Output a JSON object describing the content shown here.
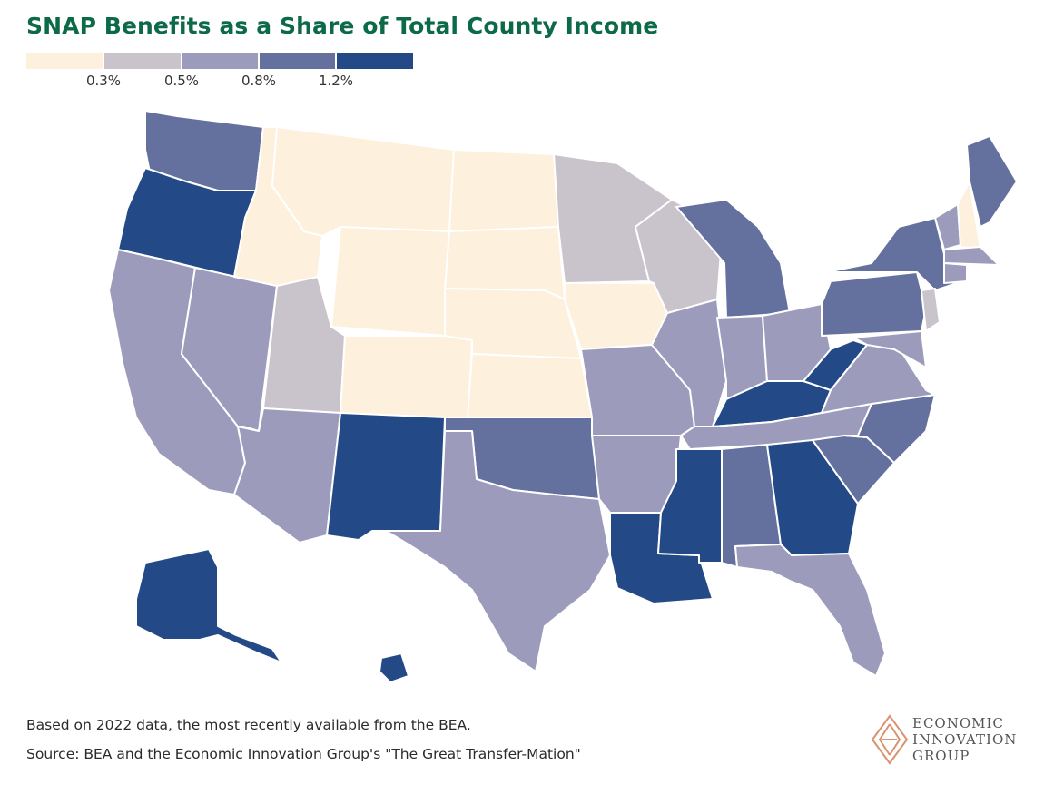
{
  "title": "SNAP Benefits as a Share of Total County Income",
  "legend": {
    "colors": [
      "#fdf0dc",
      "#c9c3cc",
      "#9c9bbb",
      "#64709e",
      "#234a86"
    ],
    "thresholds": [
      "0.3%",
      "0.5%",
      "0.8%",
      "1.2%"
    ]
  },
  "notes": {
    "line1": "Based on 2022 data, the most recently available from the BEA.",
    "line2": "Source: BEA and the Economic Innovation Group's \"The Great Transfer-Mation\""
  },
  "logo": {
    "line1": "ECONOMIC",
    "line2": "INNOVATION",
    "line3": "GROUP",
    "color": "#d9936e"
  },
  "map": {
    "regions": [
      {
        "name": "Washington",
        "level": 3
      },
      {
        "name": "Oregon",
        "level": 4
      },
      {
        "name": "California",
        "level": 2
      },
      {
        "name": "Nevada",
        "level": 2
      },
      {
        "name": "Idaho",
        "level": 0
      },
      {
        "name": "Montana",
        "level": 0
      },
      {
        "name": "Wyoming",
        "level": 0
      },
      {
        "name": "Utah",
        "level": 1
      },
      {
        "name": "Arizona",
        "level": 2
      },
      {
        "name": "Colorado",
        "level": 0
      },
      {
        "name": "New Mexico",
        "level": 4
      },
      {
        "name": "North Dakota",
        "level": 0
      },
      {
        "name": "South Dakota",
        "level": 0
      },
      {
        "name": "Nebraska",
        "level": 0
      },
      {
        "name": "Kansas",
        "level": 0
      },
      {
        "name": "Oklahoma",
        "level": 3
      },
      {
        "name": "Texas",
        "level": 2
      },
      {
        "name": "Minnesota",
        "level": 1
      },
      {
        "name": "Iowa",
        "level": 0
      },
      {
        "name": "Missouri",
        "level": 2
      },
      {
        "name": "Arkansas",
        "level": 2
      },
      {
        "name": "Louisiana",
        "level": 4
      },
      {
        "name": "Wisconsin",
        "level": 1
      },
      {
        "name": "Illinois",
        "level": 2
      },
      {
        "name": "Michigan",
        "level": 3
      },
      {
        "name": "Indiana",
        "level": 2
      },
      {
        "name": "Ohio",
        "level": 2
      },
      {
        "name": "Kentucky",
        "level": 4
      },
      {
        "name": "Tennessee",
        "level": 2
      },
      {
        "name": "Mississippi",
        "level": 4
      },
      {
        "name": "Alabama",
        "level": 3
      },
      {
        "name": "Georgia",
        "level": 4
      },
      {
        "name": "Florida",
        "level": 2
      },
      {
        "name": "South Carolina",
        "level": 3
      },
      {
        "name": "North Carolina",
        "level": 3
      },
      {
        "name": "Virginia",
        "level": 2
      },
      {
        "name": "West Virginia",
        "level": 4
      },
      {
        "name": "Pennsylvania",
        "level": 3
      },
      {
        "name": "New York",
        "level": 3
      },
      {
        "name": "Vermont",
        "level": 2
      },
      {
        "name": "New Hampshire",
        "level": 0
      },
      {
        "name": "Maine",
        "level": 3
      },
      {
        "name": "Massachusetts",
        "level": 2
      },
      {
        "name": "Connecticut",
        "level": 2
      },
      {
        "name": "New Jersey",
        "level": 1
      },
      {
        "name": "Maryland",
        "level": 2
      },
      {
        "name": "Alaska",
        "level": 4
      },
      {
        "name": "Hawaii",
        "level": 4
      }
    ]
  }
}
